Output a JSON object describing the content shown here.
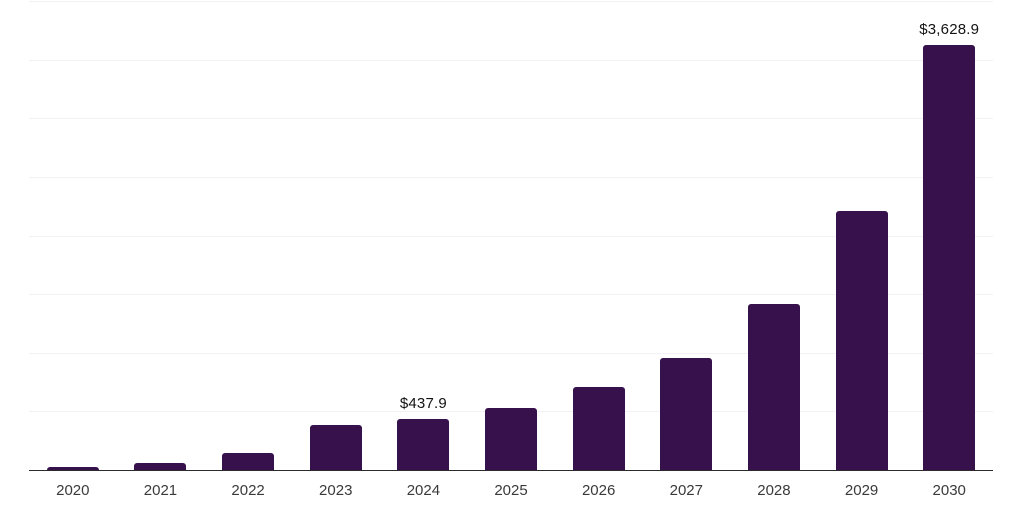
{
  "chart_data": {
    "type": "bar",
    "title": "",
    "xlabel": "",
    "ylabel": "",
    "categories": [
      "2020",
      "2021",
      "2022",
      "2023",
      "2024",
      "2025",
      "2026",
      "2027",
      "2028",
      "2029",
      "2030"
    ],
    "values": [
      22,
      59,
      147,
      383,
      437.9,
      528,
      704,
      956,
      1419,
      2207,
      3628.9
    ],
    "data_labels": [
      "",
      "",
      "",
      "",
      "$437.9",
      "",
      "",
      "",
      "",
      "",
      "$3,628.9"
    ],
    "ylim": [
      0,
      4000
    ],
    "gridline_step": 500,
    "grid": "horizontal",
    "legend_position": "none",
    "colors": {
      "bar": "#36114B",
      "gridline": "#f2f1f3",
      "axis_line": "#2b2b2b",
      "tick_label": "#3a3a3a",
      "value_label": "#131313",
      "background": "#ffffff"
    }
  }
}
